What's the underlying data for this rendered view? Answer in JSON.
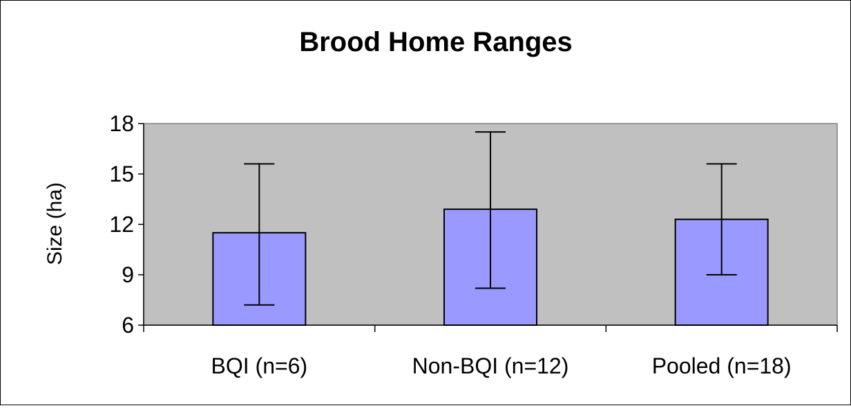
{
  "chart_data": {
    "type": "bar",
    "title": "Brood Home Ranges",
    "ylabel": "Size (ha)",
    "xlabel": "",
    "categories": [
      "BQI (n=6)",
      "Non-BQI (n=12)",
      "Pooled (n=18)"
    ],
    "values": [
      11.5,
      12.9,
      12.3
    ],
    "error_low": [
      7.2,
      8.2,
      9.0
    ],
    "error_high": [
      15.6,
      17.5,
      15.6
    ],
    "ylim": [
      6,
      18
    ],
    "yticks": [
      6,
      9,
      12,
      15,
      18
    ],
    "grid": false,
    "legend": "none",
    "colors": {
      "bar": "#9999ff",
      "plot_background": "#c0c0c0",
      "outline": "#000000"
    }
  }
}
